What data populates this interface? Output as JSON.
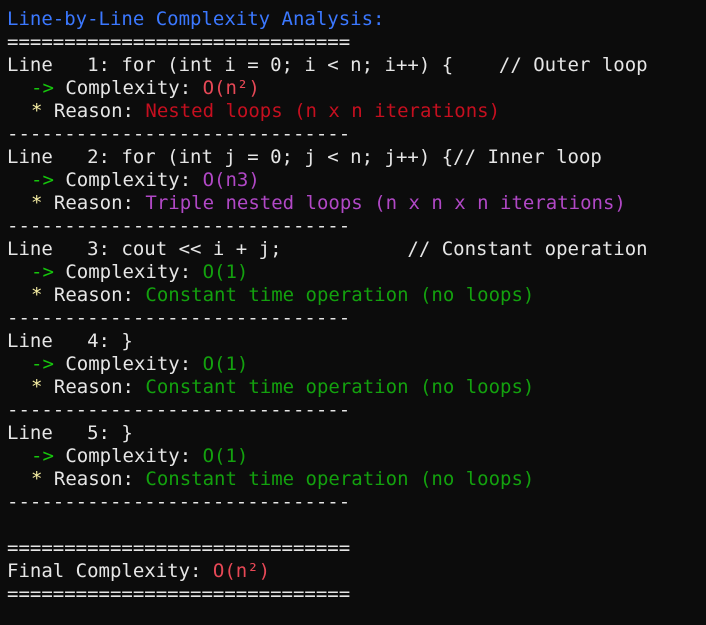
{
  "header": {
    "title": "Line-by-Line Complexity Analysis:",
    "rule_double": "==============================",
    "rule_single": "------------------------------"
  },
  "labels": {
    "line_prefix": "Line",
    "complexity_prefix": "-> ",
    "complexity_label": "Complexity: ",
    "reason_prefix": "* ",
    "reason_label": "Reason: "
  },
  "entries": [
    {
      "line_no": "   1: ",
      "code": "for (int i = 0; i < n; i++) {    // Outer loop",
      "complexity": "O(n²)",
      "reason": "Nested loops (n x n iterations)"
    },
    {
      "line_no": "   2: ",
      "code": "for (int j = 0; j < n; j++) {// Inner loop",
      "complexity": "O(n3)",
      "reason": "Triple nested loops (n x n x n iterations)"
    },
    {
      "line_no": "   3: ",
      "code": "cout << i + j;           // Constant operation",
      "complexity": "O(1)",
      "reason": "Constant time operation (no loops)"
    },
    {
      "line_no": "   4: ",
      "code": "}",
      "complexity": "O(1)",
      "reason": "Constant time operation (no loops)"
    },
    {
      "line_no": "   5: ",
      "code": "}",
      "complexity": "O(1)",
      "reason": "Constant time operation (no loops)"
    }
  ],
  "final": {
    "label": "Final Complexity: ",
    "value": "O(n²)"
  },
  "colors": {
    "background": "#0c0c0c",
    "title": "#3b78ff",
    "arrow": "#16c60c",
    "star": "#f9f1a5",
    "complexity_quadratic": "#e74856",
    "complexity_cubic": "#b148c6",
    "complexity_constant": "#13a10e",
    "reason_quadratic": "#c50f1f",
    "reason_cubic": "#881798",
    "reason_constant": "#13a10e"
  }
}
